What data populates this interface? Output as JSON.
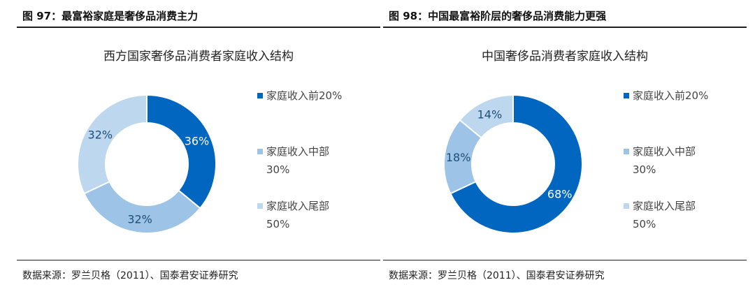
{
  "colors": {
    "dark": "#0066c0",
    "mid": "#9dc3e6",
    "light": "#bdd7ee"
  },
  "left": {
    "fig_title": "图 97：最富裕家庭是奢侈品消费主力",
    "source": "数据来源：罗兰贝格（2011）、国泰君安证券研究",
    "legend": [
      {
        "label": "家庭收入前20%",
        "sub": ""
      },
      {
        "label": "家庭收入中部",
        "sub": "30%"
      },
      {
        "label": "家庭收入尾部",
        "sub": "50%"
      }
    ]
  },
  "right": {
    "fig_title": "图 98：中国最富裕阶层的奢侈品消费能力更强",
    "source": "数据来源：罗兰贝格（2011）、国泰君安证券研究",
    "legend": [
      {
        "label": "家庭收入前20%",
        "sub": ""
      },
      {
        "label": "家庭收入中部",
        "sub": "30%"
      },
      {
        "label": "家庭收入尾部",
        "sub": "50%"
      }
    ]
  },
  "chart_data": [
    {
      "type": "pie",
      "donut": true,
      "title": "西方国家奢侈品消费者家庭收入结构",
      "categories": [
        "家庭收入前20%",
        "家庭收入中部30%",
        "家庭收入尾部50%"
      ],
      "values": [
        36,
        32,
        32
      ],
      "labels": [
        "36%",
        "32%",
        "32%"
      ],
      "colors": [
        "#0066c0",
        "#9dc3e6",
        "#bdd7ee"
      ],
      "legend_position": "right"
    },
    {
      "type": "pie",
      "donut": true,
      "title": "中国奢侈品消费者家庭收入结构",
      "categories": [
        "家庭收入前20%",
        "家庭收入中部30%",
        "家庭收入尾部50%"
      ],
      "values": [
        68,
        18,
        14
      ],
      "labels": [
        "68%",
        "18%",
        "14%"
      ],
      "colors": [
        "#0066c0",
        "#9dc3e6",
        "#bdd7ee"
      ],
      "legend_position": "right"
    }
  ]
}
